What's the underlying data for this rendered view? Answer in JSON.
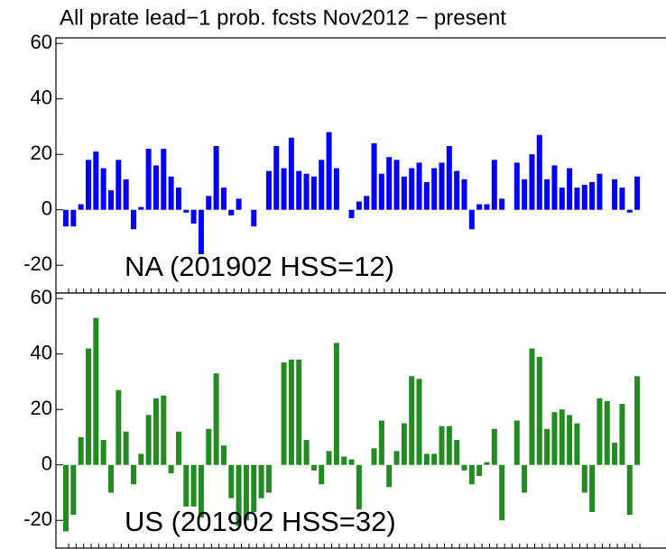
{
  "title": "All prate lead−1 prob. fcsts Nov2012 − present",
  "chart_data": [
    {
      "type": "bar",
      "label": "NA (201902 HSS=12)",
      "color": "#0000ff",
      "values": [
        -6,
        -6,
        2,
        18,
        21,
        15,
        7,
        18,
        11,
        -7,
        1,
        22,
        16,
        22,
        12,
        8,
        -1,
        -5,
        -16,
        5,
        23,
        8,
        -2,
        4,
        0,
        -6,
        0,
        14,
        23,
        15,
        26,
        14,
        13,
        12,
        18,
        28,
        15,
        0,
        -3,
        3,
        5,
        24,
        13,
        19,
        18,
        12,
        15,
        17,
        10,
        15,
        17,
        23,
        14,
        11,
        -7,
        2,
        2,
        18,
        4,
        0,
        17,
        11,
        20,
        27,
        11,
        16,
        8,
        15,
        8,
        9,
        10,
        13,
        0,
        11,
        8,
        -1,
        12
      ],
      "ylim": [
        -30,
        62
      ],
      "yticks": [
        -20,
        0,
        20,
        40,
        60
      ]
    },
    {
      "type": "bar",
      "label": "US (201902 HSS=32)",
      "color": "#228b22",
      "values": [
        -24,
        -18,
        10,
        42,
        53,
        9,
        -10,
        27,
        12,
        -7,
        4,
        18,
        24,
        25,
        -3,
        12,
        -15,
        -15,
        -19,
        13,
        33,
        7,
        -12,
        -22,
        -20,
        -17,
        -12,
        -10,
        0,
        37,
        38,
        38,
        9,
        -2,
        -7,
        5,
        44,
        3,
        2,
        -16,
        0,
        6,
        16,
        -8,
        5,
        15,
        32,
        31,
        4,
        4,
        14,
        14,
        9,
        -2,
        -7,
        -4,
        1,
        13,
        -20,
        0,
        16,
        -10,
        42,
        39,
        13,
        19,
        20,
        18,
        15,
        -10,
        -17,
        24,
        23,
        8,
        22,
        -18,
        32
      ],
      "ylim": [
        -30,
        62
      ],
      "yticks": [
        -20,
        0,
        20,
        40,
        60
      ]
    }
  ]
}
